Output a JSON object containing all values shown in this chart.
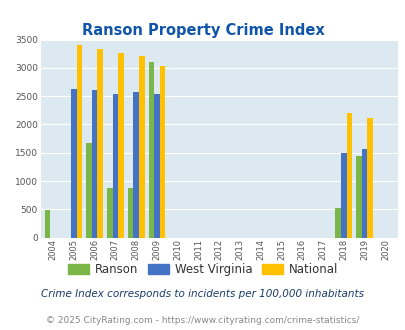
{
  "title": "Ranson Property Crime Index",
  "years": [
    2004,
    2005,
    2006,
    2007,
    2008,
    2009,
    2010,
    2011,
    2012,
    2013,
    2014,
    2015,
    2016,
    2017,
    2018,
    2019,
    2020
  ],
  "ranson": [
    490,
    null,
    1680,
    880,
    870,
    3100,
    null,
    null,
    null,
    null,
    null,
    null,
    null,
    null,
    530,
    1440,
    null
  ],
  "west_virginia": [
    null,
    2630,
    2610,
    2540,
    2570,
    2530,
    null,
    null,
    null,
    null,
    null,
    null,
    null,
    null,
    1490,
    1560,
    null
  ],
  "national": [
    null,
    3410,
    3330,
    3260,
    3210,
    3035,
    null,
    null,
    null,
    null,
    null,
    null,
    null,
    null,
    2200,
    2110,
    null
  ],
  "ranson_color": "#7ab648",
  "wv_color": "#4472c4",
  "national_color": "#ffc000",
  "bg_color": "#dce9f0",
  "grid_color": "#ffffff",
  "title_color": "#1155aa",
  "ylim": [
    0,
    3500
  ],
  "yticks": [
    0,
    500,
    1000,
    1500,
    2000,
    2500,
    3000,
    3500
  ],
  "bar_width": 0.27,
  "footnote1": "Crime Index corresponds to incidents per 100,000 inhabitants",
  "footnote2": "© 2025 CityRating.com - https://www.cityrating.com/crime-statistics/",
  "legend_labels": [
    "Ranson",
    "West Virginia",
    "National"
  ],
  "footnote1_color": "#1a3a6b",
  "footnote2_color": "#888888",
  "footnote2_link_color": "#1155aa"
}
